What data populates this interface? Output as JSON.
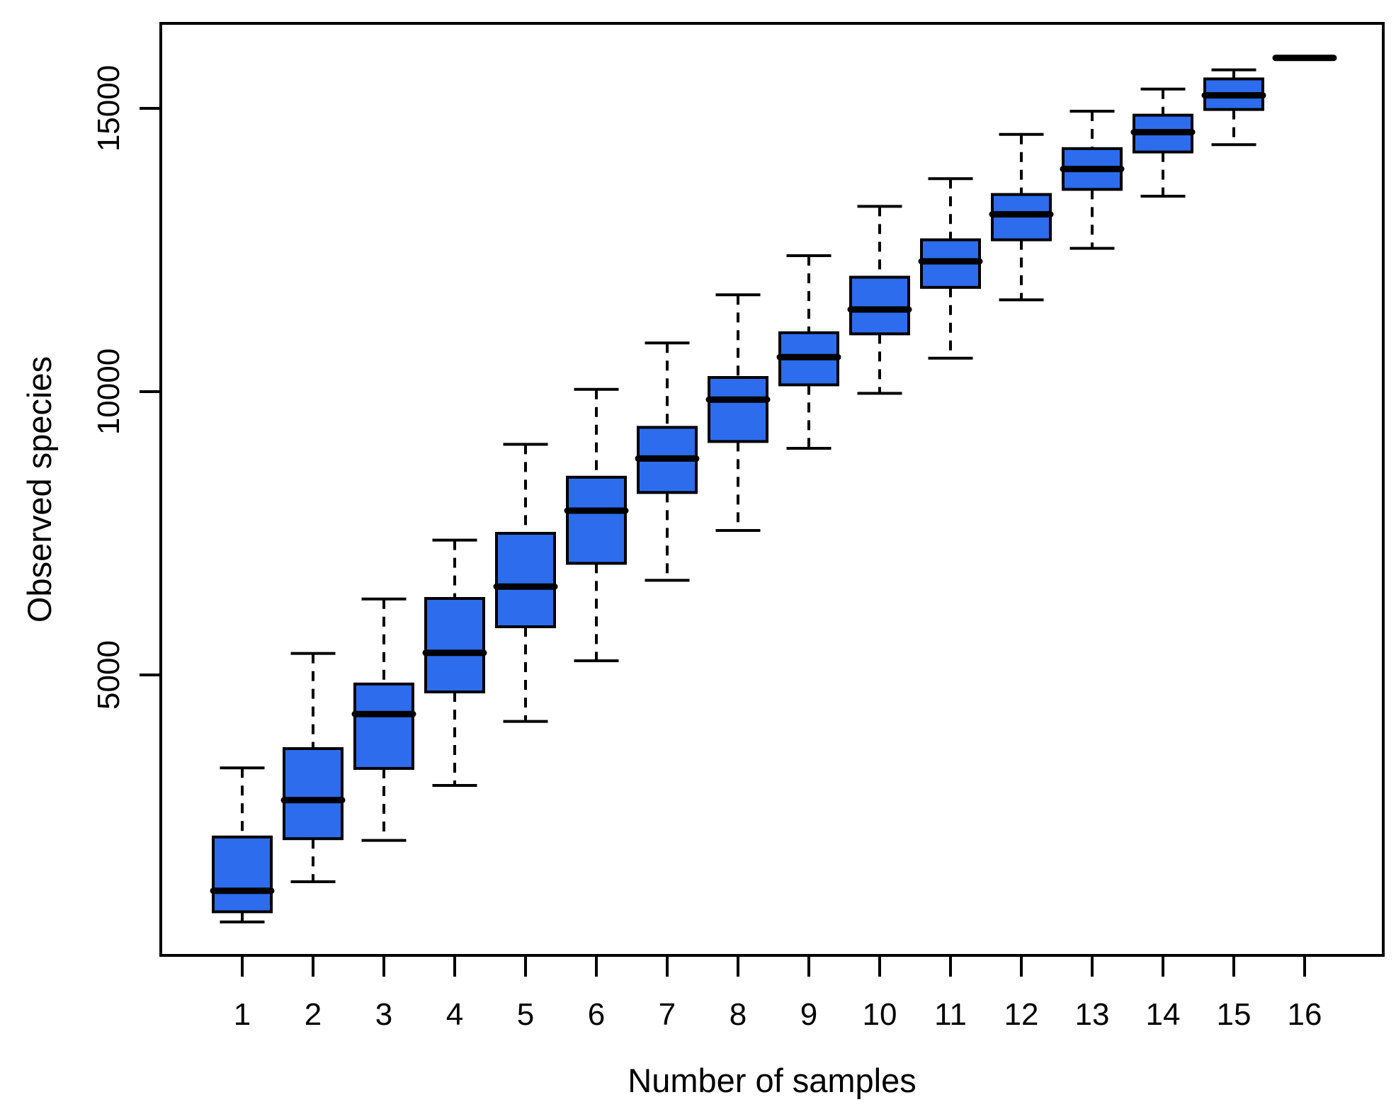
{
  "figure": {
    "background": "#ffffff",
    "box_fill_color": "#2D6CEC",
    "line_color": "#000000"
  },
  "axes": {
    "x_title": "Number of samples",
    "y_title": "Observed species",
    "x_tick_labels": [
      "1",
      "2",
      "3",
      "4",
      "5",
      "6",
      "7",
      "8",
      "9",
      "10",
      "11",
      "12",
      "13",
      "14",
      "15",
      "16"
    ],
    "y_tick_labels": [
      "5000",
      "10000",
      "15000"
    ]
  },
  "chart_data": {
    "type": "boxplot",
    "xlabel": "Number of samples",
    "ylabel": "Observed species",
    "categories": [
      1,
      2,
      3,
      4,
      5,
      6,
      7,
      8,
      9,
      10,
      11,
      12,
      13,
      14,
      15,
      16
    ],
    "y_ticks": [
      5000,
      10000,
      15000
    ],
    "ylim": [
      0,
      16500
    ],
    "grid": false,
    "legend": null,
    "boxes": [
      {
        "x": 1,
        "whisker_low": 640,
        "q1": 820,
        "median": 1190,
        "q3": 2140,
        "whisker_high": 3360
      },
      {
        "x": 2,
        "whisker_low": 1350,
        "q1": 2110,
        "median": 2790,
        "q3": 3700,
        "whisker_high": 5380
      },
      {
        "x": 3,
        "whisker_low": 2080,
        "q1": 3350,
        "median": 4310,
        "q3": 4840,
        "whisker_high": 6340
      },
      {
        "x": 4,
        "whisker_low": 3050,
        "q1": 4700,
        "median": 5390,
        "q3": 6350,
        "whisker_high": 7380
      },
      {
        "x": 5,
        "whisker_low": 4180,
        "q1": 5850,
        "median": 6560,
        "q3": 7500,
        "whisker_high": 9070
      },
      {
        "x": 6,
        "whisker_low": 5250,
        "q1": 6970,
        "median": 7900,
        "q3": 8490,
        "whisker_high": 10040
      },
      {
        "x": 7,
        "whisker_low": 6670,
        "q1": 8220,
        "median": 8820,
        "q3": 9370,
        "whisker_high": 10860
      },
      {
        "x": 8,
        "whisker_low": 7550,
        "q1": 9120,
        "median": 9860,
        "q3": 10250,
        "whisker_high": 11710
      },
      {
        "x": 9,
        "whisker_low": 9000,
        "q1": 10120,
        "median": 10610,
        "q3": 11040,
        "whisker_high": 12400
      },
      {
        "x": 10,
        "whisker_low": 9970,
        "q1": 11020,
        "median": 11450,
        "q3": 12020,
        "whisker_high": 13270
      },
      {
        "x": 11,
        "whisker_low": 10590,
        "q1": 11840,
        "median": 12300,
        "q3": 12680,
        "whisker_high": 13760
      },
      {
        "x": 12,
        "whisker_low": 11620,
        "q1": 12680,
        "median": 13130,
        "q3": 13480,
        "whisker_high": 14540
      },
      {
        "x": 13,
        "whisker_low": 12530,
        "q1": 13570,
        "median": 13930,
        "q3": 14290,
        "whisker_high": 14950
      },
      {
        "x": 14,
        "whisker_low": 13450,
        "q1": 14230,
        "median": 14580,
        "q3": 14880,
        "whisker_high": 15340
      },
      {
        "x": 15,
        "whisker_low": 14360,
        "q1": 14980,
        "median": 15230,
        "q3": 15520,
        "whisker_high": 15680
      },
      {
        "x": 16,
        "whisker_low": 15890,
        "q1": 15890,
        "median": 15890,
        "q3": 15890,
        "whisker_high": 15890
      }
    ]
  }
}
